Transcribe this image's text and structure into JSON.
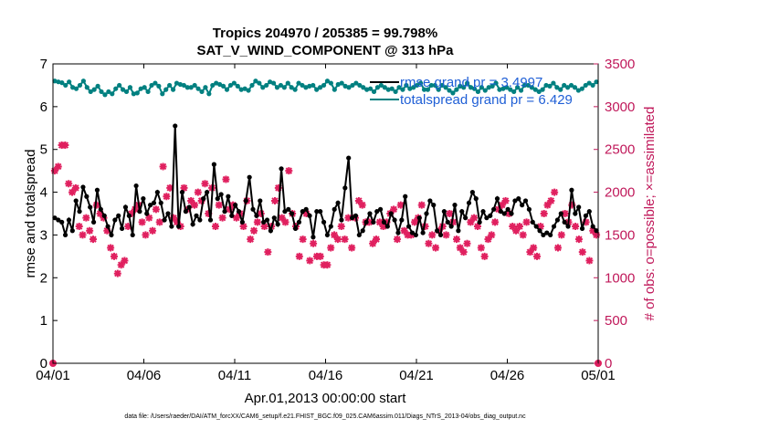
{
  "chart_data": {
    "type": "line",
    "title": "Tropics 204970 / 205385 = 99.798%",
    "subtitle": "SAT_V_WIND_COMPONENT @ 313 hPa",
    "xlabel": "Apr.01,2013 00:00:00 start",
    "ylabel_left": "rmse and totalspread",
    "ylabel_right": "# of obs: o=possible; ×=assimilated",
    "footer": "data file: /Users/raeder/DAI/ATM_forcXX/CAM6_setup/f.e21.FHIST_BGC.f09_025.CAM6assim.011/Diags_NTrS_2013-04/obs_diag_output.nc",
    "x_ticks": [
      "04/01",
      "04/06",
      "04/11",
      "04/16",
      "04/21",
      "04/26",
      "05/01"
    ],
    "xlim_days": [
      0,
      30
    ],
    "y_left_ticks": [
      "0",
      "1",
      "2",
      "3",
      "4",
      "5",
      "6",
      "7"
    ],
    "ylim_left": [
      0,
      7
    ],
    "y_right_ticks": [
      "0",
      "500",
      "1000",
      "1500",
      "2000",
      "2500",
      "3000",
      "3500"
    ],
    "ylim_right": [
      0,
      3500
    ],
    "colors": {
      "rmse": "#000000",
      "spread": "#008080",
      "obs": "#e0205f",
      "right_axis": "#c0185a",
      "legend_text": "#1f5fd6"
    },
    "legend": {
      "placement": "top-right",
      "entries": [
        "rmse grand pr = 3.4997",
        "totalspread grand pr = 6.429"
      ]
    },
    "series": [
      {
        "name": "rmse grand pr = 3.4997",
        "axis": "left",
        "values": [
          3.4,
          3.35,
          3.3,
          3.0,
          3.35,
          3.1,
          3.8,
          3.55,
          4.12,
          3.9,
          3.65,
          3.3,
          4.05,
          3.6,
          3.45,
          3.2,
          3.0,
          3.35,
          3.45,
          3.15,
          3.65,
          3.45,
          3.0,
          4.15,
          3.55,
          3.85,
          3.5,
          3.7,
          3.75,
          4.0,
          3.75,
          3.35,
          3.5,
          3.2,
          5.55,
          3.2,
          4.0,
          3.55,
          3.65,
          3.25,
          3.45,
          3.35,
          3.85,
          4.0,
          3.35,
          4.65,
          3.85,
          3.95,
          3.55,
          3.9,
          3.45,
          3.7,
          3.55,
          3.3,
          3.8,
          4.35,
          3.6,
          3.45,
          3.8,
          3.3,
          3.35,
          3.1,
          3.4,
          3.25,
          4.55,
          3.55,
          3.6,
          3.5,
          3.15,
          3.3,
          3.55,
          3.6,
          3.45,
          2.95,
          3.55,
          3.55,
          3.3,
          3.0,
          3.2,
          3.6,
          3.75,
          3.35,
          4.1,
          4.8,
          3.4,
          3.45,
          3.0,
          3.1,
          3.3,
          3.5,
          3.3,
          3.55,
          3.6,
          3.3,
          3.2,
          3.5,
          3.35,
          3.05,
          3.35,
          3.9,
          3.2,
          3.05,
          3.0,
          3.4,
          3.05,
          3.5,
          3.8,
          3.7,
          3.1,
          3.0,
          3.55,
          3.3,
          3.2,
          3.7,
          3.1,
          3.55,
          3.4,
          3.75,
          4.0,
          3.85,
          3.3,
          3.55,
          3.4,
          3.45,
          3.6,
          3.85,
          3.55,
          3.5,
          3.6,
          3.5,
          3.8,
          3.85,
          3.7,
          3.8,
          3.6,
          3.3,
          3.2,
          3.1,
          3.0,
          3.05,
          3.0,
          3.2,
          3.35,
          3.5,
          3.3,
          3.2,
          4.05,
          3.5,
          3.65,
          3.15,
          3.45,
          3.55,
          3.2,
          3.1
        ]
      },
      {
        "name": "totalspread grand pr = 6.429",
        "axis": "left",
        "values": [
          6.6,
          6.58,
          6.56,
          6.5,
          6.58,
          6.45,
          6.42,
          6.5,
          6.6,
          6.45,
          6.35,
          6.4,
          6.48,
          6.35,
          6.28,
          6.35,
          6.3,
          6.42,
          6.5,
          6.4,
          6.35,
          6.45,
          6.3,
          6.32,
          6.42,
          6.45,
          6.35,
          6.5,
          6.55,
          6.48,
          6.3,
          6.4,
          6.5,
          6.4,
          6.55,
          6.52,
          6.5,
          6.45,
          6.45,
          6.5,
          6.42,
          6.35,
          6.45,
          6.3,
          6.5,
          6.55,
          6.52,
          6.48,
          6.4,
          6.5,
          6.55,
          6.48,
          6.4,
          6.42,
          6.38,
          6.5,
          6.6,
          6.55,
          6.45,
          6.5,
          6.58,
          6.55,
          6.45,
          6.5,
          6.45,
          6.55,
          6.45,
          6.4,
          6.55,
          6.5,
          6.45,
          6.48,
          6.5,
          6.4,
          6.45,
          6.5,
          6.6,
          6.55,
          6.4,
          6.52,
          6.55,
          6.48,
          6.45,
          6.5,
          6.55,
          6.5,
          6.45,
          6.4,
          6.42,
          6.35,
          6.45,
          6.5,
          6.45,
          6.4,
          6.42,
          6.35,
          6.45,
          6.4,
          6.5,
          6.42,
          6.45,
          6.5,
          6.55,
          6.4,
          6.4,
          6.5,
          6.5,
          6.4,
          6.5,
          6.45,
          6.38,
          6.32,
          6.4,
          6.48,
          6.45,
          6.55,
          6.45,
          6.42,
          6.35,
          6.45,
          6.38,
          6.45,
          6.48,
          6.55,
          6.4,
          6.42,
          6.45,
          6.4,
          6.35,
          6.45,
          6.38,
          6.5,
          6.5,
          6.45,
          6.4,
          6.35,
          6.4,
          6.5,
          6.48,
          6.55,
          6.45,
          6.4,
          6.5,
          6.45,
          6.5,
          6.45,
          6.38,
          6.42,
          6.5,
          6.55,
          6.5,
          6.58
        ]
      }
    ],
    "obs_assimilated": {
      "axis": "right",
      "values": [
        2250,
        2300,
        2550,
        2550,
        2100,
        2000,
        2050,
        1600,
        1500,
        1700,
        1550,
        1450,
        1850,
        1750,
        1700,
        1550,
        1350,
        1250,
        1050,
        1150,
        1200,
        1600,
        1750,
        1800,
        1850,
        1650,
        1500,
        1700,
        1550,
        1800,
        1650,
        2300,
        1950,
        2050,
        1700,
        1650,
        1600,
        2050,
        1800,
        1900,
        1850,
        2000,
        1900,
        2100,
        1750,
        2050,
        1600,
        1850,
        1700,
        2150,
        1800,
        1850,
        1700,
        1750,
        1600,
        1900,
        1450,
        1550,
        1650,
        1750,
        1600,
        1300,
        1600,
        1900,
        2050,
        1700,
        1650,
        2250,
        1750,
        1600,
        1250,
        1450,
        1750,
        1200,
        1400,
        1250,
        1250,
        1150,
        1150,
        1350,
        1500,
        1450,
        1600,
        1450,
        1700,
        1350,
        1700,
        1900,
        1850,
        1650,
        1650,
        1400,
        1450,
        1650,
        1600,
        1650,
        1750,
        1800,
        1450,
        1850,
        1550,
        1500,
        1500,
        1650,
        1700,
        1850,
        1600,
        1400,
        1500,
        1350,
        1550,
        1600,
        1500,
        1750,
        1650,
        1450,
        1350,
        1300,
        1400,
        1650,
        1700,
        1600,
        1350,
        1250,
        1450,
        1500,
        1650,
        1800,
        1850,
        1900,
        1750,
        1600,
        1550,
        1600,
        1500,
        1650,
        1300,
        1350,
        1250,
        1600,
        1750,
        1850,
        1900,
        2000,
        1350,
        1500,
        1750,
        1650,
        1850,
        1600,
        1450,
        1300,
        1650,
        1200,
        1550,
        1500
      ]
    }
  }
}
